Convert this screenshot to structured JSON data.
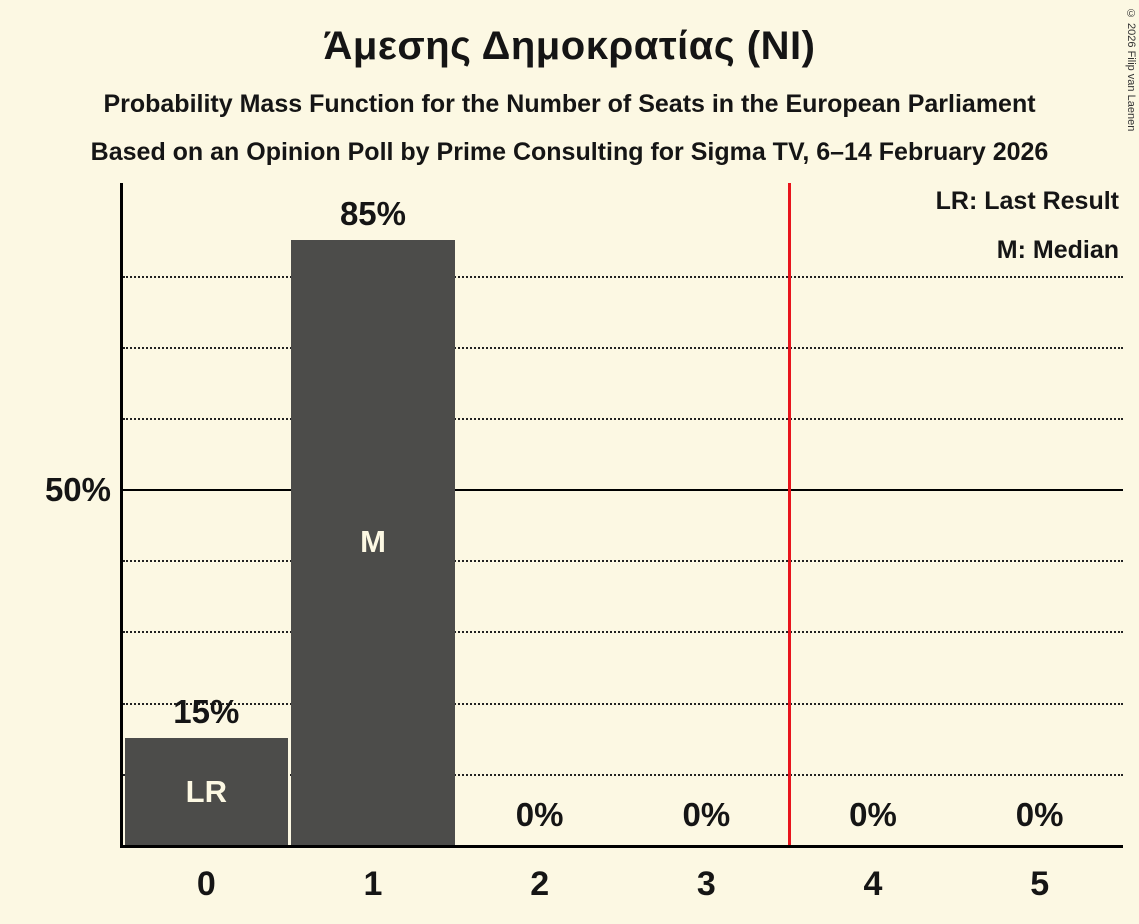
{
  "title": "Άμεσης Δημοκρατίας (NI)",
  "subtitle1": "Probability Mass Function for the Number of Seats in the European Parliament",
  "subtitle2": "Based on an Opinion Poll by Prime Consulting for Sigma TV, 6–14 February 2026",
  "copyright": "© 2026 Filip van Laenen",
  "legend": {
    "lr": "LR: Last Result",
    "m": "M: Median"
  },
  "colors": {
    "background": "#fcf8e3",
    "bar": "#4c4c4a",
    "red_line": "#e8141c",
    "text": "#151515",
    "bar_label": "#fcf8e3"
  },
  "chart_data": {
    "type": "bar",
    "title": "Άμεσης Δημοκρατίας (NI)",
    "categories": [
      "0",
      "1",
      "2",
      "3",
      "4",
      "5"
    ],
    "values": [
      15,
      85,
      0,
      0,
      0,
      0
    ],
    "bar_labels": [
      "15%",
      "85%",
      "0%",
      "0%",
      "0%",
      "0%"
    ],
    "annotations": [
      {
        "category": "0",
        "label": "LR"
      },
      {
        "category": "1",
        "label": "M"
      }
    ],
    "y_ticks": [
      {
        "value": 50,
        "label": "50%"
      }
    ],
    "gridlines_dotted": [
      10,
      20,
      30,
      40,
      60,
      70,
      80
    ],
    "gridline_solid": 50,
    "red_vline_x": 3.5,
    "xlabel": "",
    "ylabel": "",
    "ylim": [
      0,
      93
    ],
    "grid": "horizontal-dotted",
    "legend_position": "top-right"
  }
}
